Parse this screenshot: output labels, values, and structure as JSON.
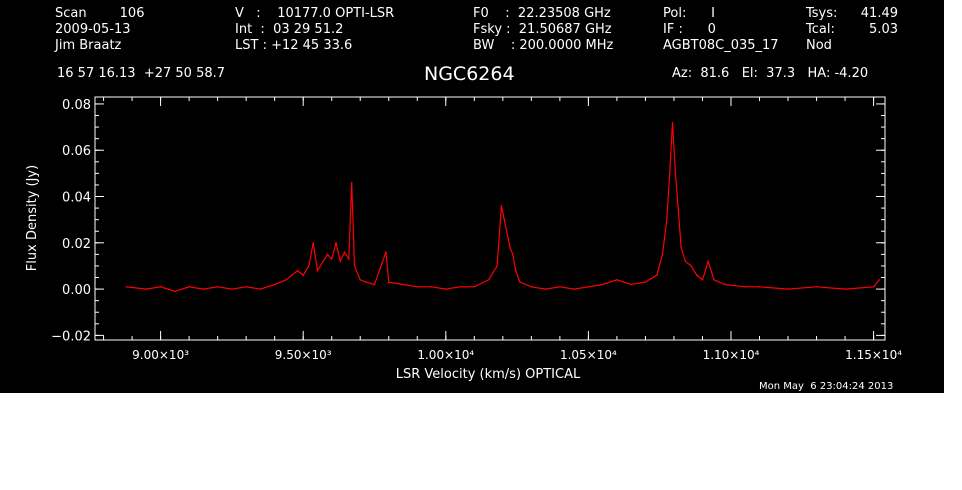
{
  "header": {
    "col1": [
      "Scan        106",
      "2009-05-13",
      "Jim Braatz"
    ],
    "col2": [
      "V   :    10177.0 OPTI-LSR",
      "Int  :  03 29 51.2",
      "LST : +12 45 33.6"
    ],
    "col3": [
      "F0    :  22.23508 GHz",
      "Fsky :  21.50687 GHz",
      "BW    : 200.0000 MHz"
    ],
    "col4": [
      "Pol:      I",
      "IF :      0",
      "AGBT08C_035_17"
    ],
    "col5a": [
      "Tsys:",
      "Tcal:",
      "Nod"
    ],
    "col5b": [
      "41.49",
      "5.03",
      ""
    ],
    "coords": "16 57 16.13  +27 50 58.7",
    "source": "NGC6264",
    "azel": "Az:  81.6   El:  37.3   HA: -4.20",
    "timestamp": "Mon May  6 23:04:24 2013"
  },
  "chart_data": {
    "type": "line",
    "title": "NGC6264",
    "xlabel": "LSR Velocity (km/s) OPTICAL",
    "ylabel": "Flux Density (Jy)",
    "xlim": [
      8770,
      11540
    ],
    "ylim": [
      -0.022,
      0.083
    ],
    "x_ticks": [
      9000,
      9500,
      10000,
      10500,
      11000,
      11500
    ],
    "x_tick_labels": [
      "9.00×10³",
      "9.50×10³",
      "1.00×10⁴",
      "1.05×10⁴",
      "1.10×10⁴",
      "1.15×10⁴"
    ],
    "y_ticks": [
      -0.02,
      0.0,
      0.02,
      0.04,
      0.06,
      0.08
    ],
    "y_tick_labels": [
      "−0.02",
      "0.00",
      "0.02",
      "0.04",
      "0.06",
      "0.08"
    ],
    "grid": false,
    "series": [
      {
        "color": "#ff0000",
        "points": [
          [
            8880,
            0.001
          ],
          [
            8950,
            0.0
          ],
          [
            9000,
            0.001
          ],
          [
            9050,
            -0.001
          ],
          [
            9100,
            0.001
          ],
          [
            9150,
            0.0
          ],
          [
            9200,
            0.001
          ],
          [
            9250,
            0.0
          ],
          [
            9300,
            0.001
          ],
          [
            9350,
            0.0
          ],
          [
            9400,
            0.002
          ],
          [
            9440,
            0.004
          ],
          [
            9460,
            0.006
          ],
          [
            9480,
            0.008
          ],
          [
            9500,
            0.006
          ],
          [
            9520,
            0.01
          ],
          [
            9535,
            0.02
          ],
          [
            9550,
            0.008
          ],
          [
            9570,
            0.012
          ],
          [
            9585,
            0.015
          ],
          [
            9600,
            0.013
          ],
          [
            9615,
            0.02
          ],
          [
            9630,
            0.012
          ],
          [
            9645,
            0.016
          ],
          [
            9660,
            0.013
          ],
          [
            9670,
            0.046
          ],
          [
            9680,
            0.01
          ],
          [
            9700,
            0.004
          ],
          [
            9720,
            0.003
          ],
          [
            9750,
            0.002
          ],
          [
            9790,
            0.016
          ],
          [
            9800,
            0.003
          ],
          [
            9850,
            0.002
          ],
          [
            9900,
            0.001
          ],
          [
            9950,
            0.001
          ],
          [
            10000,
            0.0
          ],
          [
            10050,
            0.001
          ],
          [
            10100,
            0.001
          ],
          [
            10150,
            0.004
          ],
          [
            10180,
            0.01
          ],
          [
            10195,
            0.036
          ],
          [
            10205,
            0.03
          ],
          [
            10215,
            0.024
          ],
          [
            10225,
            0.018
          ],
          [
            10235,
            0.015
          ],
          [
            10245,
            0.008
          ],
          [
            10260,
            0.003
          ],
          [
            10300,
            0.001
          ],
          [
            10350,
            0.0
          ],
          [
            10400,
            0.001
          ],
          [
            10450,
            0.0
          ],
          [
            10500,
            0.001
          ],
          [
            10550,
            0.002
          ],
          [
            10600,
            0.004
          ],
          [
            10650,
            0.002
          ],
          [
            10700,
            0.003
          ],
          [
            10740,
            0.006
          ],
          [
            10760,
            0.015
          ],
          [
            10775,
            0.03
          ],
          [
            10785,
            0.05
          ],
          [
            10795,
            0.072
          ],
          [
            10805,
            0.05
          ],
          [
            10815,
            0.035
          ],
          [
            10825,
            0.018
          ],
          [
            10840,
            0.012
          ],
          [
            10860,
            0.01
          ],
          [
            10880,
            0.006
          ],
          [
            10900,
            0.004
          ],
          [
            10920,
            0.012
          ],
          [
            10940,
            0.004
          ],
          [
            10980,
            0.002
          ],
          [
            11050,
            0.001
          ],
          [
            11100,
            0.001
          ],
          [
            11200,
            0.0
          ],
          [
            11300,
            0.001
          ],
          [
            11400,
            0.0
          ],
          [
            11500,
            0.001
          ],
          [
            11520,
            0.004
          ]
        ]
      }
    ]
  }
}
